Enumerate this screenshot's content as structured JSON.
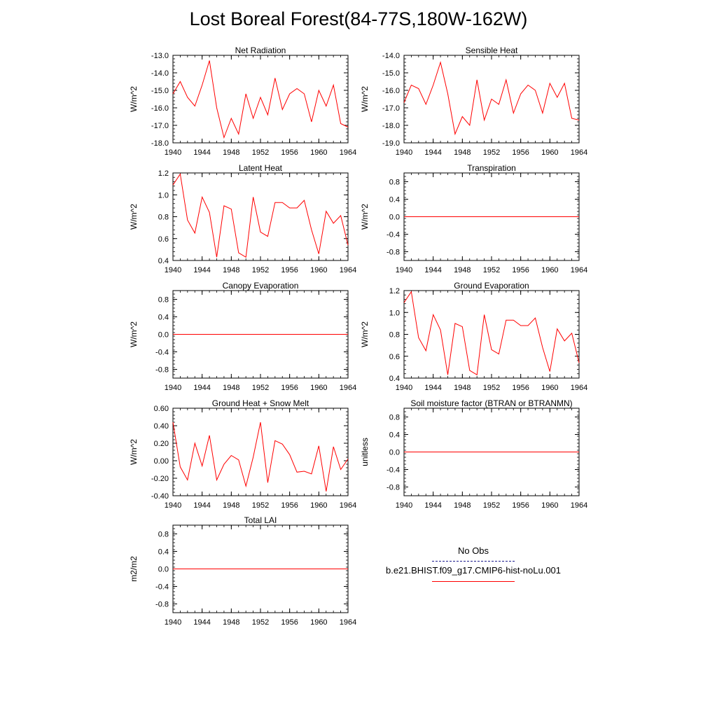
{
  "title": "Lost Boreal Forest(84-77S,180W-162W)",
  "x_years": [
    1940,
    1941,
    1942,
    1943,
    1944,
    1945,
    1946,
    1947,
    1948,
    1949,
    1950,
    1951,
    1952,
    1953,
    1954,
    1955,
    1956,
    1957,
    1958,
    1959,
    1960,
    1961,
    1962,
    1963,
    1964
  ],
  "legend": {
    "obs_label": "No Obs",
    "obs_color": "#1a1a8c",
    "model_label": "b.e21.BHIST.f09_g17.CMIP6-hist-noLu.001",
    "model_color": "#ff0000"
  },
  "chart_data": [
    {
      "type": "line",
      "title": "Net Radiation",
      "ylabel": "W/m^2",
      "xlim": [
        1940,
        1964
      ],
      "ylim": [
        -18.0,
        -13.0
      ],
      "yticks": [
        -18.0,
        -17.0,
        -16.0,
        -15.0,
        -14.0,
        -13.0
      ],
      "ytick_labels": [
        "-18.0",
        "-17.0",
        "-16.0",
        "-15.0",
        "-14.0",
        "-13.0"
      ],
      "xticks": [
        1940,
        1944,
        1948,
        1952,
        1956,
        1960,
        1964
      ],
      "series": [
        {
          "values": [
            -15.2,
            -14.5,
            -15.4,
            -15.9,
            -14.7,
            -13.3,
            -16.0,
            -17.7,
            -16.6,
            -17.5,
            -15.2,
            -16.6,
            -15.4,
            -16.4,
            -14.3,
            -16.1,
            -15.2,
            -14.9,
            -15.2,
            -16.8,
            -15.0,
            -15.9,
            -14.7,
            -16.9,
            -17.1
          ]
        }
      ]
    },
    {
      "type": "line",
      "title": "Sensible Heat",
      "ylabel": "W/m^2",
      "xlim": [
        1940,
        1964
      ],
      "ylim": [
        -19.0,
        -14.0
      ],
      "yticks": [
        -19.0,
        -18.0,
        -17.0,
        -16.0,
        -15.0,
        -14.0
      ],
      "ytick_labels": [
        "-19.0",
        "-18.0",
        "-17.0",
        "-16.0",
        "-15.0",
        "-14.0"
      ],
      "xticks": [
        1940,
        1944,
        1948,
        1952,
        1956,
        1960,
        1964
      ],
      "series": [
        {
          "values": [
            -16.7,
            -15.7,
            -15.9,
            -16.8,
            -15.7,
            -14.4,
            -16.2,
            -18.5,
            -17.5,
            -18.0,
            -15.4,
            -17.7,
            -16.5,
            -16.8,
            -15.4,
            -17.3,
            -16.2,
            -15.7,
            -16.0,
            -17.3,
            -15.6,
            -16.4,
            -15.6,
            -17.6,
            -17.7
          ]
        }
      ]
    },
    {
      "type": "line",
      "title": "Latent Heat",
      "ylabel": "W/m^2",
      "xlim": [
        1940,
        1964
      ],
      "ylim": [
        0.4,
        1.2
      ],
      "yticks": [
        0.4,
        0.6,
        0.8,
        1.0,
        1.2
      ],
      "ytick_labels": [
        "0.4",
        "0.6",
        "0.8",
        "1.0",
        "1.2"
      ],
      "xticks": [
        1940,
        1944,
        1948,
        1952,
        1956,
        1960,
        1964
      ],
      "series": [
        {
          "values": [
            1.09,
            1.19,
            0.77,
            0.65,
            0.98,
            0.84,
            0.43,
            0.9,
            0.87,
            0.47,
            0.43,
            0.98,
            0.66,
            0.62,
            0.93,
            0.93,
            0.88,
            0.88,
            0.95,
            0.68,
            0.46,
            0.85,
            0.74,
            0.81,
            0.54
          ]
        }
      ]
    },
    {
      "type": "line",
      "title": "Transpiration",
      "ylabel": "W/m^2",
      "xlim": [
        1940,
        1964
      ],
      "ylim": [
        -1.0,
        1.0
      ],
      "yticks": [
        -0.8,
        -0.4,
        0.0,
        0.4,
        0.8
      ],
      "ytick_labels": [
        "-0.8",
        "-0.4",
        "0.0",
        "0.4",
        "0.8"
      ],
      "xticks": [
        1940,
        1944,
        1948,
        1952,
        1956,
        1960,
        1964
      ],
      "series": [
        {
          "values": [
            0,
            0,
            0,
            0,
            0,
            0,
            0,
            0,
            0,
            0,
            0,
            0,
            0,
            0,
            0,
            0,
            0,
            0,
            0,
            0,
            0,
            0,
            0,
            0,
            0
          ]
        }
      ]
    },
    {
      "type": "line",
      "title": "Canopy Evaporation",
      "ylabel": "W/m^2",
      "xlim": [
        1940,
        1964
      ],
      "ylim": [
        -1.0,
        1.0
      ],
      "yticks": [
        -0.8,
        -0.4,
        0.0,
        0.4,
        0.8
      ],
      "ytick_labels": [
        "-0.8",
        "-0.4",
        "0.0",
        "0.4",
        "0.8"
      ],
      "xticks": [
        1940,
        1944,
        1948,
        1952,
        1956,
        1960,
        1964
      ],
      "series": [
        {
          "values": [
            0,
            0,
            0,
            0,
            0,
            0,
            0,
            0,
            0,
            0,
            0,
            0,
            0,
            0,
            0,
            0,
            0,
            0,
            0,
            0,
            0,
            0,
            0,
            0,
            0
          ]
        }
      ]
    },
    {
      "type": "line",
      "title": "Ground Evaporation",
      "ylabel": "W/m^2",
      "xlim": [
        1940,
        1964
      ],
      "ylim": [
        0.4,
        1.2
      ],
      "yticks": [
        0.4,
        0.6,
        0.8,
        1.0,
        1.2
      ],
      "ytick_labels": [
        "0.4",
        "0.6",
        "0.8",
        "1.0",
        "1.2"
      ],
      "xticks": [
        1940,
        1944,
        1948,
        1952,
        1956,
        1960,
        1964
      ],
      "series": [
        {
          "values": [
            1.09,
            1.19,
            0.77,
            0.65,
            0.98,
            0.84,
            0.43,
            0.9,
            0.87,
            0.47,
            0.43,
            0.98,
            0.66,
            0.62,
            0.93,
            0.93,
            0.88,
            0.88,
            0.95,
            0.68,
            0.46,
            0.85,
            0.74,
            0.81,
            0.54
          ]
        }
      ]
    },
    {
      "type": "line",
      "title": "Ground Heat + Snow Melt",
      "ylabel": "W/m^2",
      "xlim": [
        1940,
        1964
      ],
      "ylim": [
        -0.4,
        0.6
      ],
      "yticks": [
        -0.4,
        -0.2,
        0.0,
        0.2,
        0.4,
        0.6
      ],
      "ytick_labels": [
        "-0.40",
        "-0.20",
        "0.00",
        "0.20",
        "0.40",
        "0.60"
      ],
      "xticks": [
        1940,
        1944,
        1948,
        1952,
        1956,
        1960,
        1964
      ],
      "series": [
        {
          "values": [
            0.44,
            -0.07,
            -0.22,
            0.2,
            -0.06,
            0.29,
            -0.22,
            -0.04,
            0.06,
            0.01,
            -0.29,
            0.04,
            0.44,
            -0.25,
            0.23,
            0.19,
            0.07,
            -0.13,
            -0.12,
            -0.15,
            0.17,
            -0.35,
            0.16,
            -0.1,
            0.02
          ]
        }
      ]
    },
    {
      "type": "line",
      "title": "Soil moisture factor (BTRAN or BTRANMN)",
      "ylabel": "unitless",
      "xlim": [
        1940,
        1964
      ],
      "ylim": [
        -1.0,
        1.0
      ],
      "yticks": [
        -0.8,
        -0.4,
        0.0,
        0.4,
        0.8
      ],
      "ytick_labels": [
        "-0.8",
        "-0.4",
        "0.0",
        "0.4",
        "0.8"
      ],
      "xticks": [
        1940,
        1944,
        1948,
        1952,
        1956,
        1960,
        1964
      ],
      "series": [
        {
          "values": [
            0,
            0,
            0,
            0,
            0,
            0,
            0,
            0,
            0,
            0,
            0,
            0,
            0,
            0,
            0,
            0,
            0,
            0,
            0,
            0,
            0,
            0,
            0,
            0,
            0
          ]
        }
      ]
    },
    {
      "type": "line",
      "title": "Total LAI",
      "ylabel": "m2/m2",
      "xlim": [
        1940,
        1964
      ],
      "ylim": [
        -1.0,
        1.0
      ],
      "yticks": [
        -0.8,
        -0.4,
        0.0,
        0.4,
        0.8
      ],
      "ytick_labels": [
        "-0.8",
        "-0.4",
        "0.0",
        "0.4",
        "0.8"
      ],
      "xticks": [
        1940,
        1944,
        1948,
        1952,
        1956,
        1960,
        1964
      ],
      "series": [
        {
          "values": [
            0,
            0,
            0,
            0,
            0,
            0,
            0,
            0,
            0,
            0,
            0,
            0,
            0,
            0,
            0,
            0,
            0,
            0,
            0,
            0,
            0,
            0,
            0,
            0,
            0
          ]
        }
      ]
    }
  ]
}
